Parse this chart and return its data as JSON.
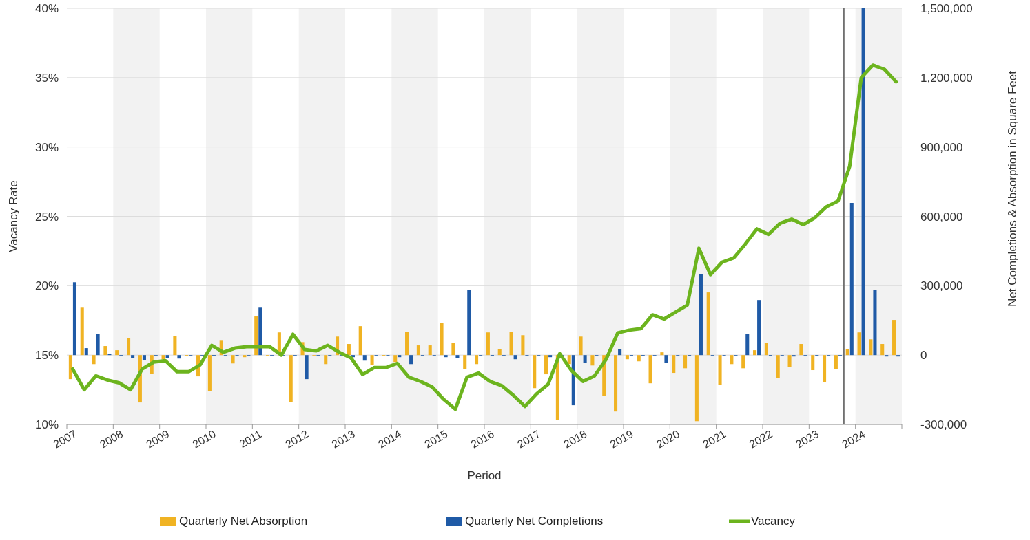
{
  "chart_data": {
    "type": "bar",
    "xlabel": "Period",
    "ylabel": "Vacancy Rate",
    "y2label": "Net Completions & Absorption in Square Feet",
    "x": [
      2007.125,
      2007.375,
      2007.625,
      2007.875,
      2008.125,
      2008.375,
      2008.625,
      2008.875,
      2009.125,
      2009.375,
      2009.625,
      2009.875,
      2010.125,
      2010.375,
      2010.625,
      2010.875,
      2011.125,
      2011.375,
      2011.625,
      2011.875,
      2012.125,
      2012.375,
      2012.625,
      2012.875,
      2013.125,
      2013.375,
      2013.625,
      2013.875,
      2014.125,
      2014.375,
      2014.625,
      2014.875,
      2015.125,
      2015.375,
      2015.625,
      2015.875,
      2016.125,
      2016.375,
      2016.625,
      2016.875,
      2017.125,
      2017.375,
      2017.625,
      2017.875,
      2018.125,
      2018.375,
      2018.625,
      2018.875,
      2019.125,
      2019.375,
      2019.625,
      2019.875,
      2020.125,
      2020.375,
      2020.625,
      2020.875,
      2021.125,
      2021.375,
      2021.625,
      2021.875,
      2022.125,
      2022.375,
      2022.625,
      2022.875,
      2023.125,
      2023.375,
      2023.625,
      2023.875,
      2024.125,
      2024.375,
      2024.625,
      2024.875
    ],
    "series": [
      {
        "name": "Quarterly Net Absorption",
        "axis": "y2",
        "color": "#f0b323",
        "values": [
          -104000,
          205000,
          -39000,
          39000,
          21000,
          74000,
          -205000,
          -80000,
          -18000,
          83000,
          -3000,
          -92000,
          -155000,
          65000,
          -36000,
          -9000,
          167000,
          0,
          98000,
          -202000,
          56000,
          0,
          -39000,
          80000,
          48000,
          125000,
          -42000,
          -3000,
          -30000,
          101000,
          42000,
          42000,
          140000,
          54000,
          -62000,
          -39000,
          98000,
          27000,
          101000,
          86000,
          -143000,
          -83000,
          -280000,
          -39000,
          80000,
          -45000,
          -176000,
          -244000,
          -18000,
          -27000,
          -122000,
          12000,
          -77000,
          -57000,
          -286000,
          271000,
          -128000,
          -39000,
          -57000,
          21000,
          54000,
          -98000,
          -51000,
          48000,
          -65000,
          -116000,
          -60000,
          27000,
          98000,
          68000,
          48000,
          152000
        ]
      },
      {
        "name": "Quarterly Net Completions",
        "axis": "y2",
        "color": "#1f5aa6",
        "values": [
          315000,
          30000,
          92000,
          6000,
          0,
          -12000,
          -21000,
          0,
          -12000,
          -15000,
          0,
          0,
          -3000,
          0,
          0,
          0,
          205000,
          0,
          0,
          0,
          -104000,
          0,
          0,
          0,
          -9000,
          -24000,
          0,
          0,
          -9000,
          -39000,
          0,
          0,
          -9000,
          -12000,
          283000,
          0,
          -3000,
          0,
          -18000,
          0,
          0,
          -9000,
          0,
          -217000,
          -33000,
          0,
          null,
          27000,
          -3000,
          -3000,
          0,
          -33000,
          0,
          -3000,
          351000,
          0,
          0,
          0,
          92000,
          238000,
          -3000,
          0,
          -6000,
          0,
          -3000,
          0,
          0,
          658000,
          1500000,
          283000,
          -6000,
          -6000
        ]
      },
      {
        "name": "Vacancy",
        "type": "line",
        "color": "#6cb41e",
        "values": [
          14.0,
          12.5,
          13.5,
          13.2,
          13.0,
          12.5,
          14.0,
          14.5,
          14.6,
          13.8,
          13.8,
          14.3,
          15.7,
          15.2,
          15.5,
          15.6,
          15.6,
          15.6,
          15.0,
          16.5,
          15.4,
          15.3,
          15.7,
          15.2,
          14.8,
          13.6,
          14.1,
          14.1,
          14.4,
          13.4,
          13.1,
          12.7,
          11.8,
          11.1,
          13.4,
          13.7,
          13.1,
          12.8,
          12.1,
          11.3,
          12.2,
          12.9,
          15.1,
          13.9,
          13.1,
          13.5,
          14.7,
          16.6,
          16.8,
          16.9,
          17.9,
          17.6,
          18.1,
          18.6,
          22.7,
          20.8,
          21.7,
          22.0,
          23.0,
          24.1,
          23.7,
          24.5,
          24.8,
          24.4,
          24.9,
          25.7,
          26.1,
          28.6,
          35.0,
          35.9,
          35.6,
          34.7
        ]
      }
    ],
    "xlim": [
      2007,
      2025
    ],
    "xticks": [
      2007,
      2008,
      2009,
      2010,
      2011,
      2012,
      2013,
      2014,
      2015,
      2016,
      2017,
      2018,
      2019,
      2020,
      2021,
      2022,
      2023,
      2024
    ],
    "ylim": [
      10,
      40
    ],
    "yticks": [
      {
        "value": 10,
        "label": "10%"
      },
      {
        "value": 15,
        "label": "15%"
      },
      {
        "value": 20,
        "label": "20%"
      },
      {
        "value": 25,
        "label": "25%"
      },
      {
        "value": 30,
        "label": "30%"
      },
      {
        "value": 35,
        "label": "35%"
      },
      {
        "value": 40,
        "label": "40%"
      }
    ],
    "y2lim": [
      -300000,
      1500000
    ],
    "y2ticks": [
      {
        "value": -300000,
        "label": "-300,000"
      },
      {
        "value": 0,
        "label": "0"
      },
      {
        "value": 300000,
        "label": "300,000"
      },
      {
        "value": 600000,
        "label": "600,000"
      },
      {
        "value": 900000,
        "label": "900,000"
      },
      {
        "value": 1200000,
        "label": "1,200,000"
      },
      {
        "value": 1500000,
        "label": "1,500,000"
      }
    ],
    "ref_lines": [
      {
        "axis": "x",
        "value": 2023.75,
        "color": "#707070"
      }
    ],
    "bands": [
      {
        "axis": "x",
        "from": 2008,
        "to": 2009,
        "color": "#f2f2f2"
      },
      {
        "axis": "x",
        "from": 2010,
        "to": 2011,
        "color": "#f2f2f2"
      },
      {
        "axis": "x",
        "from": 2012,
        "to": 2013,
        "color": "#f2f2f2"
      },
      {
        "axis": "x",
        "from": 2014,
        "to": 2015,
        "color": "#f2f2f2"
      },
      {
        "axis": "x",
        "from": 2016,
        "to": 2017,
        "color": "#f2f2f2"
      },
      {
        "axis": "x",
        "from": 2018,
        "to": 2019,
        "color": "#f2f2f2"
      },
      {
        "axis": "x",
        "from": 2020,
        "to": 2021,
        "color": "#f2f2f2"
      },
      {
        "axis": "x",
        "from": 2022,
        "to": 2023,
        "color": "#f2f2f2"
      },
      {
        "axis": "x",
        "from": 2024,
        "to": 2025,
        "color": "#f2f2f2"
      }
    ],
    "grid": "y",
    "legend": "bottom"
  }
}
